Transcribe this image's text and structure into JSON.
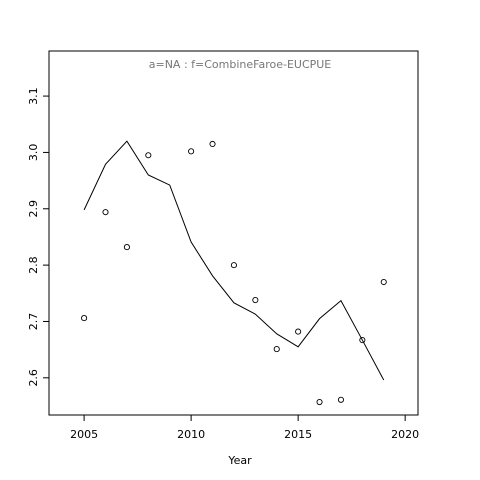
{
  "chart_data": {
    "type": "scatter",
    "title": "a=NA  :  f=CombineFaroe-EUCPUE",
    "x_label": "Year",
    "xlim": [
      2003.36,
      2020.6
    ],
    "ylim": [
      2.534,
      3.18
    ],
    "xticks": [
      2005,
      2010,
      2015,
      2020
    ],
    "yticks": [
      2.6,
      2.7,
      2.8,
      2.9,
      3.0,
      3.1
    ],
    "series": [
      {
        "mode": "points",
        "color": "#000000",
        "x": [
          2005,
          2006,
          2007,
          2008,
          2010,
          2011,
          2012,
          2013,
          2014,
          2015,
          2016,
          2017,
          2018,
          2019
        ],
        "values": [
          2.706,
          2.894,
          2.832,
          2.995,
          3.002,
          3.015,
          2.8,
          2.738,
          2.651,
          2.682,
          2.557,
          2.561,
          2.667,
          2.77
        ]
      },
      {
        "mode": "line",
        "color": "#000000",
        "x": [
          2005,
          2006,
          2007,
          2008,
          2009,
          2010,
          2011,
          2012,
          2013,
          2014,
          2015,
          2016,
          2017,
          2018,
          2019
        ],
        "values": [
          2.898,
          2.979,
          3.02,
          2.96,
          2.942,
          2.841,
          2.781,
          2.733,
          2.713,
          2.678,
          2.655,
          2.705,
          2.737,
          2.667,
          2.596
        ]
      }
    ]
  }
}
